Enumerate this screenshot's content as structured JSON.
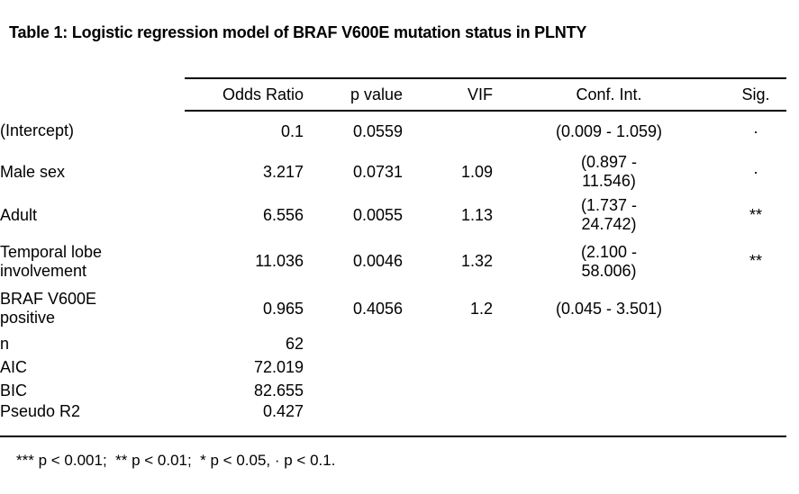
{
  "title": "Table 1: Logistic regression model of BRAF V600E mutation status in PLNTY",
  "table": {
    "columns": [
      "",
      "Odds Ratio",
      "p value",
      "VIF",
      "Conf. Int.",
      "Sig."
    ],
    "rows": [
      {
        "label": "(Intercept)",
        "odds_ratio": "0.1",
        "p_value": "0.0559",
        "vif": "",
        "conf_int": "(0.009 - 1.059)",
        "sig": "·",
        "bold": false
      },
      {
        "label": "Male sex",
        "odds_ratio": "3.217",
        "p_value": "0.0731",
        "vif": "1.09",
        "conf_int": "(0.897 -\n11.546)",
        "sig": "·",
        "bold": false
      },
      {
        "label": "Adult",
        "odds_ratio": "6.556",
        "p_value": "0.0055",
        "vif": "1.13",
        "conf_int": "(1.737 -\n24.742)",
        "sig": "**",
        "bold": true
      },
      {
        "label": "Temporal lobe\ninvolvement",
        "odds_ratio": "11.036",
        "p_value": "0.0046",
        "vif": "1.32",
        "conf_int": "(2.100 -\n58.006)",
        "sig": "**",
        "bold": true
      },
      {
        "label": "BRAF V600E\npositive",
        "odds_ratio": "0.965",
        "p_value": "0.4056",
        "vif": "1.2",
        "conf_int": "(0.045 - 3.501)",
        "sig": "",
        "bold": false
      }
    ],
    "stats": [
      {
        "label": "n",
        "value": "62"
      },
      {
        "label": "AIC",
        "value": "72.019"
      },
      {
        "label": "BIC",
        "value": "82.655"
      },
      {
        "label": "Pseudo R2",
        "value": "0.427"
      }
    ]
  },
  "footnote": "*** p < 0.001;  ** p < 0.01;  * p < 0.05, · p < 0.1."
}
